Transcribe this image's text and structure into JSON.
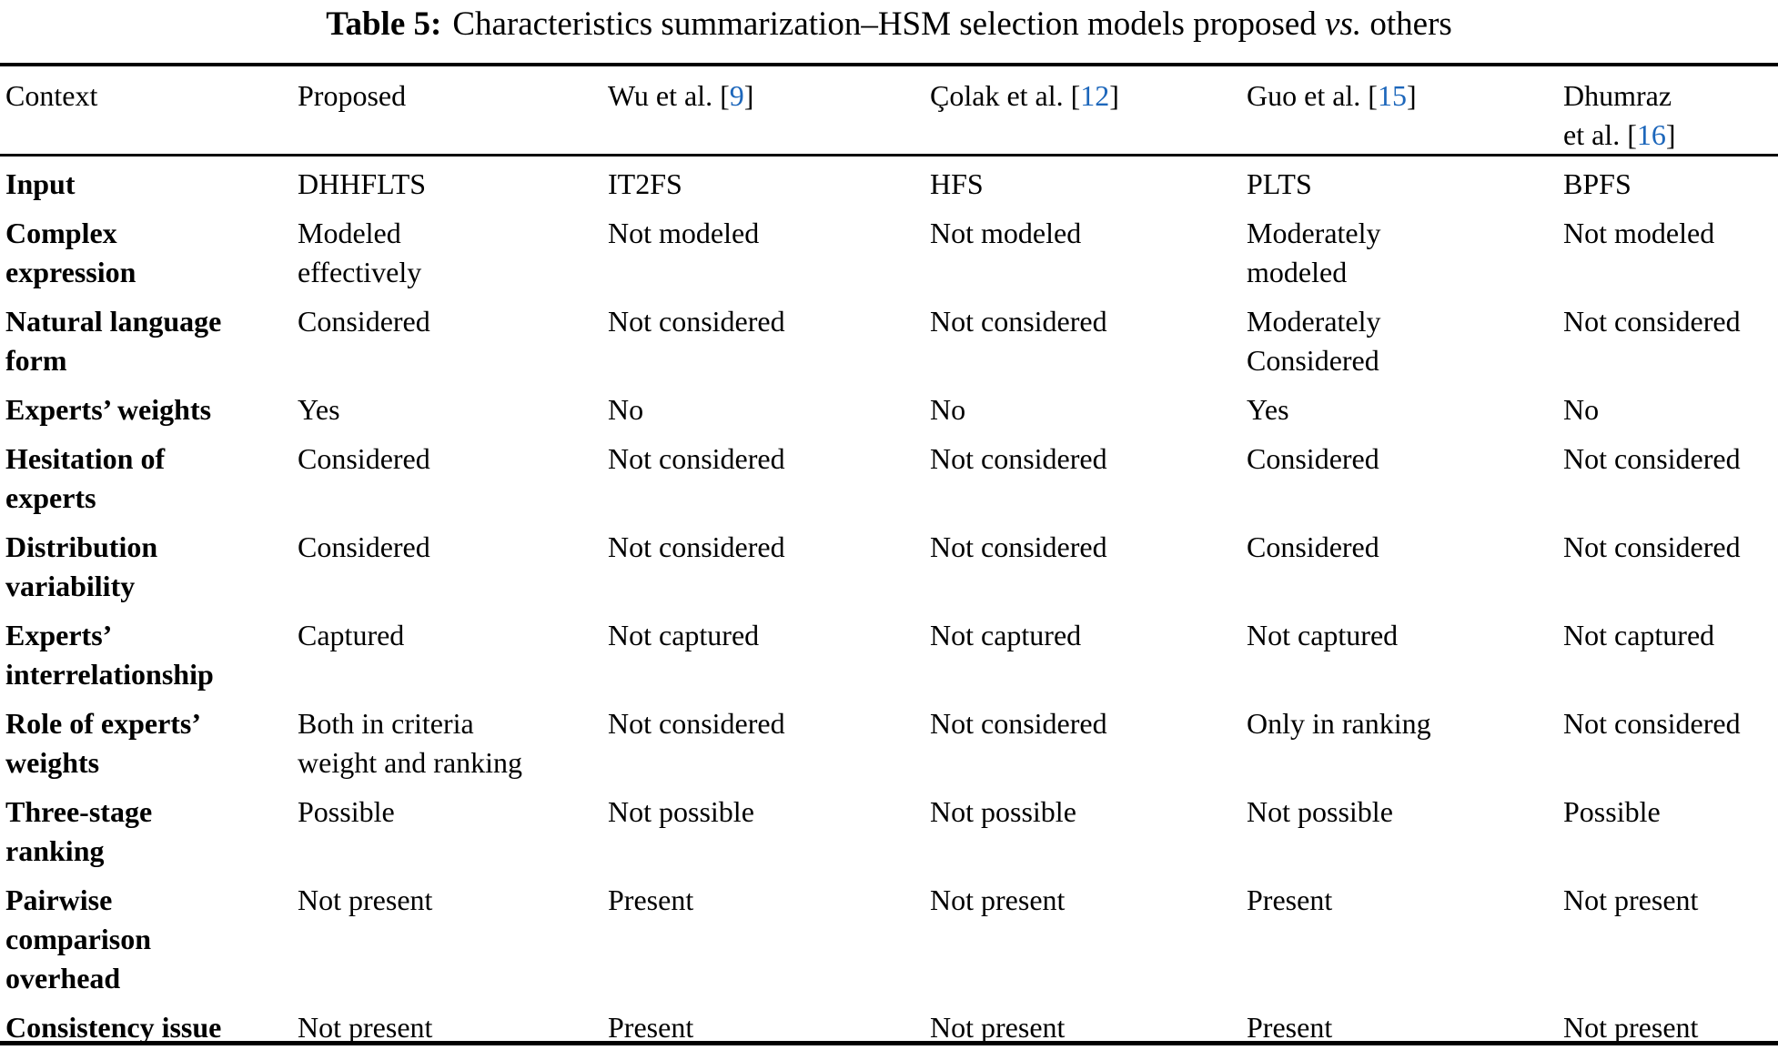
{
  "caption": {
    "label": "Table 5:",
    "text": "Characteristics summarization–HSM selection models proposed ",
    "vs": "vs.",
    "tail": " others"
  },
  "header": {
    "col0": "Context",
    "col1": "Proposed",
    "col2": {
      "pre": "Wu et al. [",
      "cite": "9",
      "post": "]"
    },
    "col3": {
      "pre": "Çolak et al. [",
      "cite": "12",
      "post": "]"
    },
    "col4": {
      "pre": "Guo et al. [",
      "cite": "15",
      "post": "]"
    },
    "col5": {
      "line1": "Dhumraz",
      "pre": "et al. [",
      "cite": "16",
      "post": "]"
    }
  },
  "rows": [
    {
      "context": "Input",
      "cells": [
        "DHHFLTS",
        "IT2FS",
        "HFS",
        "PLTS",
        "BPFS"
      ]
    },
    {
      "context": "Complex\nexpression",
      "cells": [
        "Modeled\neffectively",
        "Not modeled",
        "Not modeled",
        "Moderately\nmodeled",
        "Not modeled"
      ]
    },
    {
      "context": "Natural language\nform",
      "cells": [
        "Considered",
        "Not considered",
        "Not considered",
        "Moderately\nConsidered",
        "Not considered"
      ]
    },
    {
      "context": "Experts’ weights",
      "cells": [
        "Yes",
        "No",
        "No",
        "Yes",
        "No"
      ]
    },
    {
      "context": "Hesitation of\nexperts",
      "cells": [
        "Considered",
        "Not considered",
        "Not considered",
        "Considered",
        "Not considered"
      ]
    },
    {
      "context": "Distribution\nvariability",
      "cells": [
        "Considered",
        "Not considered",
        "Not considered",
        "Considered",
        "Not considered"
      ]
    },
    {
      "context": "Experts’\ninterrelationship",
      "cells": [
        "Captured",
        "Not captured",
        "Not captured",
        "Not captured",
        "Not captured"
      ]
    },
    {
      "context": "Role of experts’\nweights",
      "cells": [
        "Both in criteria\nweight and ranking",
        "Not considered",
        "Not considered",
        "Only in ranking",
        "Not considered"
      ]
    },
    {
      "context": "Three-stage\nranking",
      "cells": [
        "Possible",
        "Not possible",
        "Not possible",
        "Not possible",
        "Possible"
      ]
    },
    {
      "context": "Pairwise\ncomparison\noverhead",
      "cells": [
        "Not present",
        "Present",
        "Not present",
        "Present",
        "Not present"
      ]
    },
    {
      "context": "Consistency issue",
      "cells": [
        "Not present",
        "Present",
        "Not present",
        "Present",
        "Not present"
      ]
    }
  ],
  "colors": {
    "citation_blue": "#1d67bb",
    "text": "#000000",
    "rule": "#000000"
  }
}
